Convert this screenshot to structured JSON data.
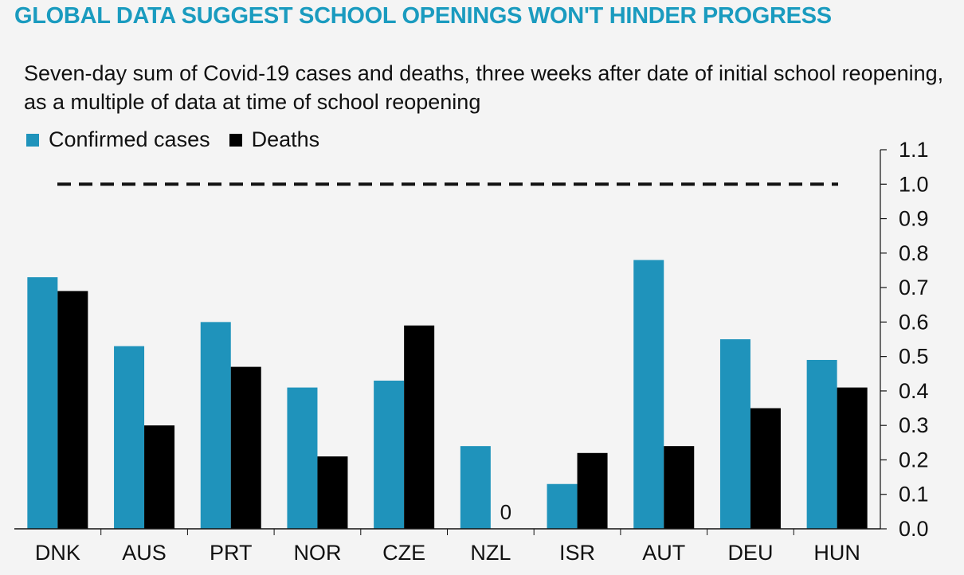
{
  "title": "GLOBAL DATA SUGGEST SCHOOL OPENINGS WON'T HINDER PROGRESS",
  "subtitle": "Seven-day sum of Covid-19 cases and deaths, three weeks after date of initial school reopening, as a multiple of data at time of school reopening",
  "colors": {
    "cases": "#1f93bb",
    "deaths": "#000000",
    "title": "#1a9bbf"
  },
  "chart_data": {
    "type": "bar",
    "categories": [
      "DNK",
      "AUS",
      "PRT",
      "NOR",
      "CZE",
      "NZL",
      "ISR",
      "AUT",
      "DEU",
      "HUN"
    ],
    "series": [
      {
        "name": "Confirmed cases",
        "values": [
          0.73,
          0.53,
          0.6,
          0.41,
          0.43,
          0.24,
          0.13,
          0.78,
          0.55,
          0.49
        ]
      },
      {
        "name": "Deaths",
        "values": [
          0.69,
          0.3,
          0.47,
          0.21,
          0.59,
          0.0,
          0.22,
          0.24,
          0.35,
          0.41
        ]
      }
    ],
    "reference_line": 1.0,
    "annotations": [
      {
        "category": "NZL",
        "series": "Deaths",
        "text": "0"
      }
    ],
    "ylim": [
      0,
      1.1
    ],
    "yticks": [
      "0.0",
      "0.1",
      "0.2",
      "0.3",
      "0.4",
      "0.5",
      "0.6",
      "0.7",
      "0.8",
      "0.9",
      "1.0",
      "1.1"
    ],
    "y_axis_side": "right",
    "legend": "top-left",
    "grid": false
  }
}
